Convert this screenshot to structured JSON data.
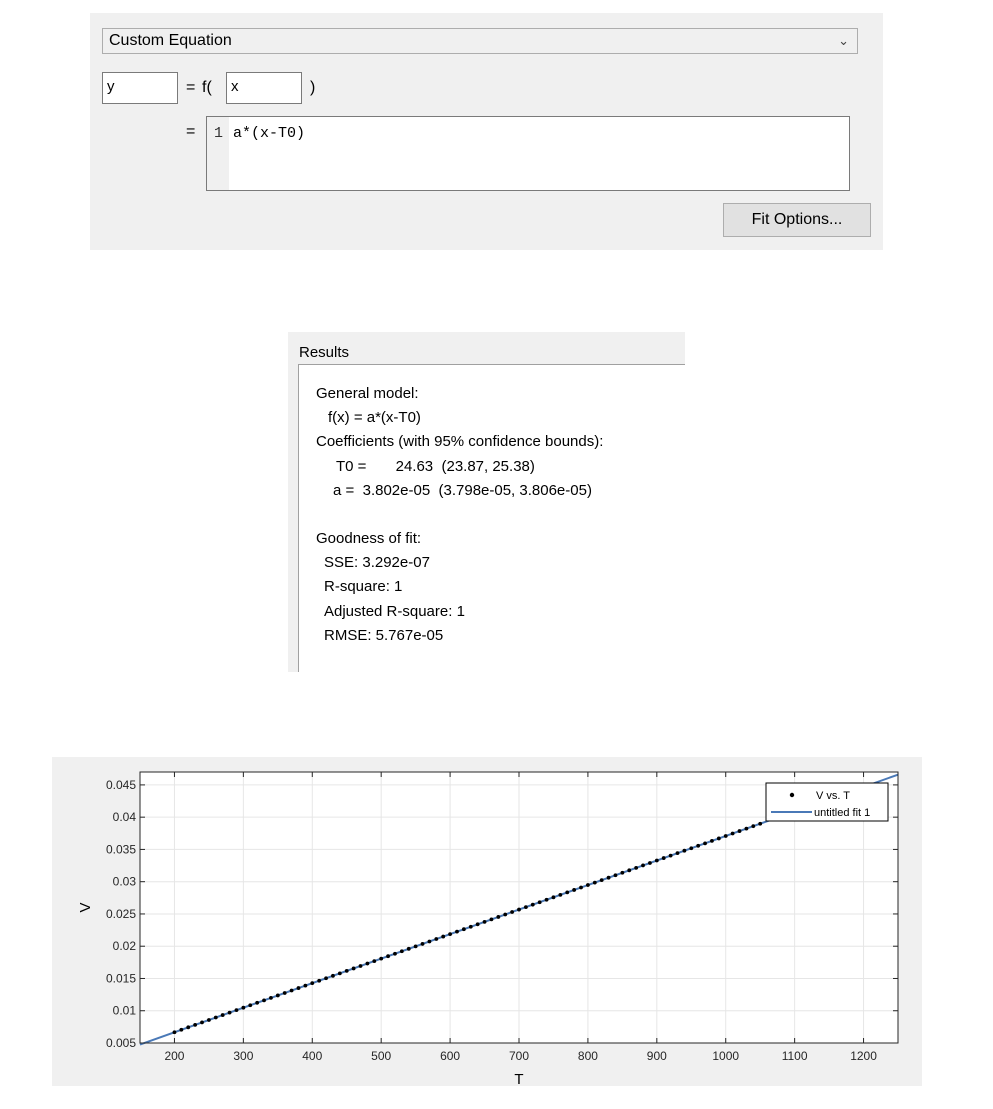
{
  "equation_panel": {
    "model_type": "Custom Equation",
    "dependent_var": "y",
    "equals": "=",
    "f_open": "f(",
    "independent_var": "x",
    "close_paren": ")",
    "expr_equals": "=",
    "line_number": "1",
    "expression": "a*(x-T0)",
    "fit_options_label": "Fit Options..."
  },
  "results": {
    "title": "Results",
    "general_model_label": "General model:",
    "model_formula": "f(x) = a*(x-T0)",
    "coefficients_label": "Coefficients (with 95% confidence bounds):",
    "coef_T0": "T0 =       24.63  (23.87, 25.38)",
    "coef_a": "a =  3.802e-05  (3.798e-05, 3.806e-05)",
    "goodness_label": "Goodness of fit:",
    "sse": "SSE: 3.292e-07",
    "rsquare": "R-square: 1",
    "adj_rsquare": "Adjusted R-square: 1",
    "rmse": "RMSE: 5.767e-05"
  },
  "chart_data": {
    "type": "scatter",
    "xlabel": "T",
    "ylabel": "V",
    "xlim": [
      150,
      1250
    ],
    "ylim": [
      0.005,
      0.047
    ],
    "xticks": [
      200,
      300,
      400,
      500,
      600,
      700,
      800,
      900,
      1000,
      1100,
      1200
    ],
    "yticks": [
      0.005,
      0.01,
      0.015,
      0.02,
      0.025,
      0.03,
      0.035,
      0.04,
      0.045
    ],
    "ytick_labels": [
      "0.005",
      "0.01",
      "0.015",
      "0.02",
      "0.025",
      "0.03",
      "0.035",
      "0.04",
      "0.045"
    ],
    "grid": true,
    "legend_position": "top-right",
    "series": [
      {
        "name": "V vs. T",
        "kind": "points",
        "color": "#000000",
        "x_start": 200,
        "x_end": 1050,
        "x_step": 10,
        "model": "y = a*(x-T0)",
        "a": 3.802e-05,
        "T0": 24.63
      },
      {
        "name": "untitled fit 1",
        "kind": "line",
        "color": "#4a79b7",
        "x": [
          150,
          1250
        ],
        "y": [
          0.004766,
          0.046589
        ]
      }
    ]
  },
  "colors": {
    "panel_bg": "#f0f0f0",
    "fit_line": "#4a79b7",
    "points": "#000000"
  }
}
